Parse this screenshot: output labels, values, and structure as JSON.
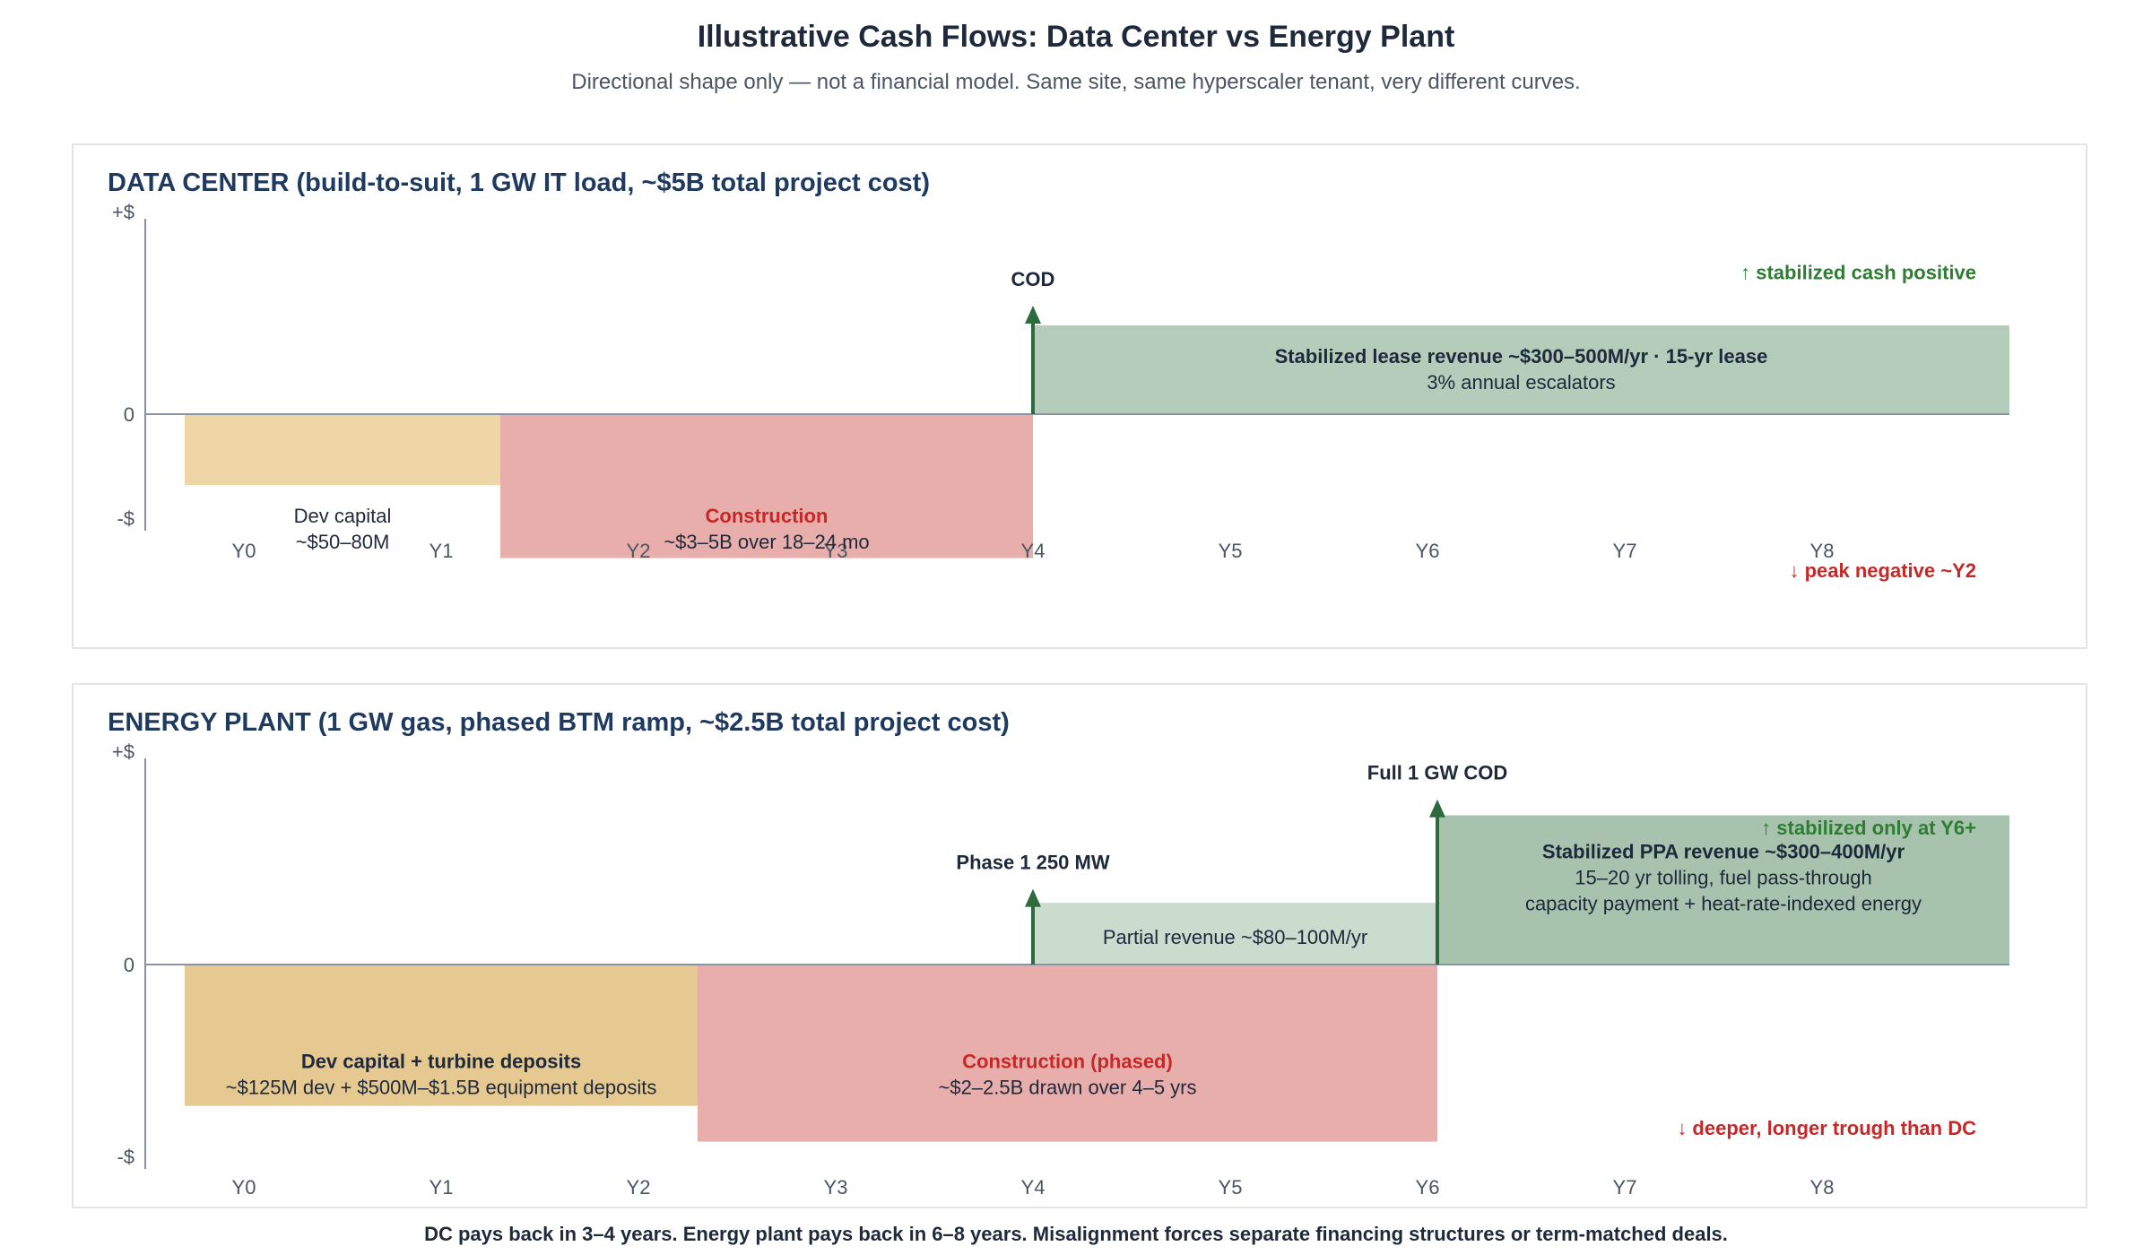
{
  "title": "Illustrative Cash Flows: Data Center vs Energy Plant",
  "subtitle": "Directional shape only — not a financial model. Same site, same hyperscaler tenant, very different curves.",
  "footer": "DC pays back in 3–4 years. Energy plant pays back in 6–8 years. Misalignment forces separate financing structures or term-matched deals.",
  "axis_labels": {
    "positive": "+$",
    "zero": "0",
    "negative": "-$"
  },
  "x_ticks": [
    "Y0",
    "Y1",
    "Y2",
    "Y3",
    "Y4",
    "Y5",
    "Y6",
    "Y7",
    "Y8"
  ],
  "colors": {
    "dev": "#eed6a7",
    "dev_dark": "#e6c990",
    "construction": "#e8aeac",
    "revenue": "#b4ccb9",
    "revenue_light": "#c9dccd",
    "revenue_dark": "#a7c3ad",
    "arrow": "#2d6a3e",
    "positive_text": "#2e7d32",
    "negative_text": "#c62828",
    "panel_title": "#1f3a5f"
  },
  "dc": {
    "title": "DATA CENTER (build-to-suit, 1 GW IT load, ~$5B total project cost)",
    "blocks": [
      {
        "id": "dev",
        "x0": -0.3,
        "x1": 1.3,
        "y": -0.36,
        "color": "dev",
        "label_y": -0.58,
        "lines": [
          {
            "text": "Dev capital",
            "style": "normal"
          },
          {
            "text": "~$50–80M",
            "style": "normal"
          }
        ]
      },
      {
        "id": "construction",
        "x0": 1.3,
        "x1": 4.0,
        "y": -0.73,
        "color": "construction",
        "label_y": -0.58,
        "lines": [
          {
            "text": "Construction",
            "style": "red-bold"
          },
          {
            "text": "~$3–5B over 18–24 mo",
            "style": "normal"
          }
        ]
      },
      {
        "id": "lease",
        "x0": 4.0,
        "x1": 8.95,
        "y": 0.45,
        "color": "revenue",
        "label_y": 0.23,
        "lines": [
          {
            "text": "Stabilized lease revenue ~$300–500M/yr · 15-yr lease",
            "style": "bold"
          },
          {
            "text": "3% annual escalators",
            "style": "normal"
          }
        ]
      }
    ],
    "markers": [
      {
        "x": 4.0,
        "label": "COD",
        "top": 0.55
      }
    ],
    "annotations": [
      {
        "text": "↑ stabilized cash positive",
        "tone": "positive",
        "y": 0.72
      },
      {
        "text": "↓ peak negative ~Y2",
        "tone": "negative",
        "y": -0.79
      }
    ]
  },
  "ep": {
    "title": "ENERGY PLANT (1 GW gas, phased BTM ramp, ~$2.5B total project cost)",
    "blocks": [
      {
        "id": "dev",
        "x0": -0.3,
        "x1": 2.3,
        "y": -0.71,
        "color": "dev_dark",
        "label_y": -0.55,
        "lines": [
          {
            "text": "Dev capital + turbine deposits",
            "style": "bold"
          },
          {
            "text": "~$125M dev + $500M–$1.5B equipment deposits",
            "style": "normal"
          }
        ]
      },
      {
        "id": "construction",
        "x0": 2.3,
        "x1": 6.05,
        "y": -0.89,
        "color": "construction",
        "label_y": -0.55,
        "lines": [
          {
            "text": "Construction (phased)",
            "style": "red-bold"
          },
          {
            "text": "~$2–2.5B drawn over 4–5 yrs",
            "style": "normal"
          }
        ]
      },
      {
        "id": "partial",
        "x0": 4.0,
        "x1": 6.05,
        "y": 0.31,
        "color": "revenue_light",
        "label_y": 0.14,
        "lines": [
          {
            "text": "Partial revenue ~$80–100M/yr",
            "style": "normal"
          }
        ]
      },
      {
        "id": "ppa",
        "x0": 6.05,
        "x1": 8.95,
        "y": 0.75,
        "color": "revenue_dark",
        "label_y": 0.44,
        "lines": [
          {
            "text": "Stabilized PPA revenue ~$300–400M/yr",
            "style": "bold"
          },
          {
            "text": "15–20 yr tolling, fuel pass-through",
            "style": "normal"
          },
          {
            "text": "capacity payment + heat-rate-indexed energy",
            "style": "normal"
          }
        ]
      }
    ],
    "markers": [
      {
        "x": 4.0,
        "label": "Phase 1 250 MW",
        "top": 0.38
      },
      {
        "x": 6.05,
        "label": "Full 1 GW COD",
        "top": 0.83
      }
    ],
    "annotations": [
      {
        "text": "↑ stabilized only at Y6+",
        "tone": "positive",
        "y": 0.69
      },
      {
        "text": "↓ deeper, longer trough than DC",
        "tone": "negative",
        "y": -0.82
      }
    ]
  }
}
